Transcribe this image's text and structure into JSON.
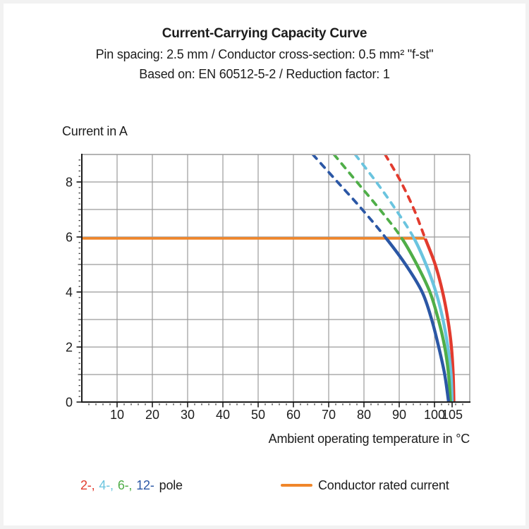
{
  "page": {
    "title_line1": "Current-Carrying Capacity Curve",
    "title_line2": "Pin spacing: 2.5 mm / Conductor cross-section: 0.5 mm² \"f-st\"",
    "title_line3": "Based on: EN 60512-5-2 / Reduction factor: 1"
  },
  "chart_data": {
    "type": "line",
    "title": "Current-Carrying Capacity Curve",
    "subtitle_spec": "Pin spacing: 2.5 mm / Conductor cross-section: 0.5 mm² \"f-st\"",
    "subtitle_standard": "Based on: EN 60512-5-2 / Reduction factor: 1",
    "xlabel": "Ambient operating temperature in °C",
    "ylabel": "Current in A",
    "xlim": [
      0,
      110
    ],
    "ylim": [
      0,
      9
    ],
    "x_major_ticks": [
      10,
      20,
      30,
      40,
      50,
      60,
      70,
      80,
      90,
      100,
      105
    ],
    "x_gridlines": [
      10,
      20,
      30,
      40,
      50,
      60,
      70,
      80,
      90,
      100
    ],
    "y_major_ticks": [
      0,
      2,
      4,
      6,
      8
    ],
    "y_gridlines": [
      1,
      2,
      3,
      4,
      5,
      6,
      7,
      8
    ],
    "x_minor_step_degC": 2,
    "y_minor_step_A": 0.2,
    "grid": true,
    "legend_position": "bottom",
    "colors": {
      "grid": "#9b9b9b",
      "axis": "#1c1c1c",
      "accent_orange": "#f0862a"
    },
    "rated_current": {
      "label": "Conductor rated current",
      "value_A": 5.95,
      "x_start_degC": 0,
      "x_end_degC": 97.2,
      "color": "#f0862a"
    },
    "series": [
      {
        "name": "2-pole",
        "color": "#e23b2e",
        "dashed_above_A": 5.95,
        "points_degC_A": [
          [
            86,
            9
          ],
          [
            90.5,
            8
          ],
          [
            94.2,
            7
          ],
          [
            97.2,
            6
          ],
          [
            100.2,
            5
          ],
          [
            102.3,
            4
          ],
          [
            103.8,
            3
          ],
          [
            104.8,
            2
          ],
          [
            105.3,
            1
          ],
          [
            105.5,
            0
          ]
        ]
      },
      {
        "name": "4-pole",
        "color": "#6ac4df",
        "dashed_above_A": 5.95,
        "points_degC_A": [
          [
            77.5,
            9
          ],
          [
            83.5,
            8
          ],
          [
            89,
            7
          ],
          [
            94,
            6
          ],
          [
            97.6,
            5
          ],
          [
            100.4,
            4
          ],
          [
            102.4,
            3
          ],
          [
            103.8,
            2
          ],
          [
            104.7,
            1
          ],
          [
            105,
            0
          ]
        ]
      },
      {
        "name": "6-pole",
        "color": "#4fae48",
        "dashed_above_A": 5.95,
        "points_degC_A": [
          [
            71.5,
            9
          ],
          [
            78,
            8
          ],
          [
            84.5,
            7
          ],
          [
            90.5,
            6
          ],
          [
            95,
            5
          ],
          [
            98.7,
            4
          ],
          [
            101.1,
            3
          ],
          [
            102.9,
            2
          ],
          [
            104,
            1
          ],
          [
            104.5,
            0
          ]
        ]
      },
      {
        "name": "12-pole",
        "color": "#2b57a5",
        "dashed_above_A": 5.95,
        "points_degC_A": [
          [
            65.5,
            9
          ],
          [
            72.5,
            8
          ],
          [
            79.5,
            7
          ],
          [
            86,
            6
          ],
          [
            91.8,
            5
          ],
          [
            96.5,
            4
          ],
          [
            99.2,
            3
          ],
          [
            101.2,
            2
          ],
          [
            102.9,
            1
          ],
          [
            104,
            0
          ]
        ]
      }
    ],
    "pole_legend": {
      "items": [
        {
          "label": "2-,",
          "color": "#e23b2e"
        },
        {
          "label": "4-,",
          "color": "#6ac4df"
        },
        {
          "label": "6-,",
          "color": "#4fae48"
        },
        {
          "label": "12-",
          "color": "#2b57a5"
        }
      ],
      "suffix": "pole"
    }
  }
}
